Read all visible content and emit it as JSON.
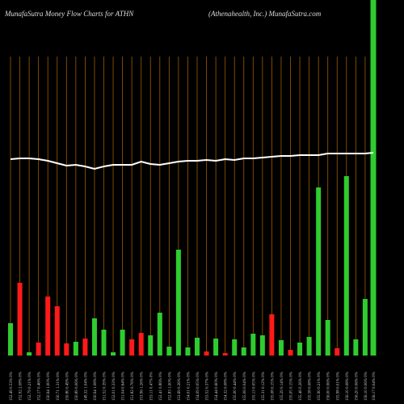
{
  "chart_data": {
    "type": "bar",
    "title": "MunafaSutra  Money Flow  Charts for ATHN",
    "subtitle": "(Athenahealth,  Inc.) MunafaSutra.com",
    "categories": [
      "152.49 0.53% 0%",
      "152.92 2.08% 0%",
      "152.79 0.21% 0%",
      "152.17 0.46% 0%",
      "150.64 1.00% 0%",
      "150.71 1.31% 0%",
      "150.80 0.49% 0%",
      "150.89 0.06% 0%",
      "149.32 1.04% 0%",
      "150.94 1.08% 0%",
      "151.52 0.39% 0%",
      "152.01 0.33% 0%",
      "151.04 0.64% 0%",
      "151.82 0.76% 0%",
      "153.96 1.26% 0%",
      "153.11 0.47% 0%",
      "152.41 0.86% 0%",
      "152.83 1.00% 0%",
      "153.69 0.26% 0%",
      "154.01 0.21% 0%",
      "154.09 0.05% 0%",
      "153.52 0.37% 0%",
      "154.44 0.60% 0%",
      "154.32 0.08% 0%",
      "155.00 0.44% 0%",
      "155.06 0.04% 0%",
      "155.13 0.05% 0%",
      "155.31 0.12% 0%",
      "155.08 0.15% 0%",
      "155.29 0.14% 0%",
      "155.05 0.15% 0%",
      "155.46 0.26% 0%",
      "155.58 0.08% 0%",
      "155.90 0.21% 0%",
      "156.00 0.06% 0%",
      "155.98 0.01% 0%",
      "156.10 0.08% 0%",
      "156.20 0.06% 0%",
      "156.10 0.06% 0%",
      "156.17 0.04% 0%"
    ],
    "values": [
      40,
      90,
      4,
      16,
      73,
      61,
      15,
      17,
      21,
      46,
      32,
      4,
      32,
      20,
      28,
      25,
      53,
      11,
      131,
      10,
      22,
      5,
      21,
      3,
      20,
      10,
      27,
      25,
      51,
      19,
      7,
      16,
      23,
      208,
      44,
      9,
      222,
      20,
      70,
      440
    ],
    "colors": [
      "#2ecc2e",
      "#ff1a1a",
      "#2ecc2e",
      "#ff1a1a",
      "#ff1a1a",
      "#ff1a1a",
      "#ff1a1a",
      "#2ecc2e",
      "#ff1a1a",
      "#2ecc2e",
      "#2ecc2e",
      "#2ecc2e",
      "#2ecc2e",
      "#ff1a1a",
      "#ff1a1a",
      "#2ecc2e",
      "#2ecc2e",
      "#2ecc2e",
      "#2ecc2e",
      "#2ecc2e",
      "#2ecc2e",
      "#ff1a1a",
      "#2ecc2e",
      "#ff1a1a",
      "#2ecc2e",
      "#2ecc2e",
      "#2ecc2e",
      "#2ecc2e",
      "#ff1a1a",
      "#2ecc2e",
      "#ff1a1a",
      "#2ecc2e",
      "#2ecc2e",
      "#2ecc2e",
      "#2ecc2e",
      "#ff1a1a",
      "#2ecc2e",
      "#2ecc2e",
      "#2ecc2e",
      "#2ecc2e"
    ],
    "price": [
      243,
      244,
      244,
      243,
      241,
      238,
      235,
      236,
      234,
      231,
      234,
      236,
      236,
      236,
      240,
      237,
      236,
      238,
      240,
      241,
      241,
      242,
      241,
      243,
      242,
      244,
      244,
      245,
      246,
      247,
      247,
      248,
      248,
      248,
      250,
      250,
      250,
      250,
      250,
      251
    ],
    "price_color": "#ffffff",
    "ylim": [
      0,
      440
    ]
  }
}
